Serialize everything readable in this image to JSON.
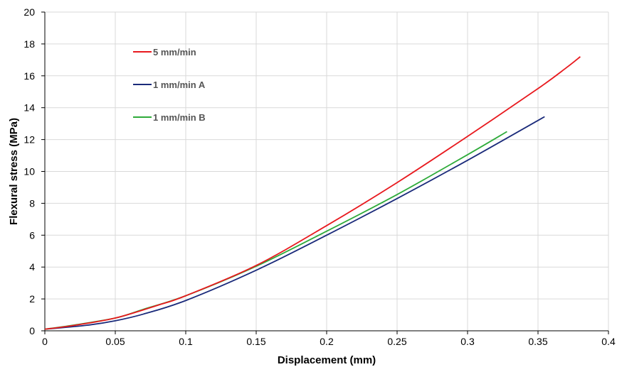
{
  "chart_data": {
    "type": "line",
    "title": "",
    "xlabel": "Displacement (mm)",
    "ylabel": "Flexural stress (MPa)",
    "xlim": [
      0,
      0.4
    ],
    "ylim": [
      0,
      20
    ],
    "xticks": [
      "0",
      "0.05",
      "0.1",
      "0.15",
      "0.2",
      "0.25",
      "0.3",
      "0.35",
      "0.4"
    ],
    "yticks": [
      "0",
      "2",
      "4",
      "6",
      "8",
      "10",
      "12",
      "14",
      "16",
      "18",
      "20"
    ],
    "grid": true,
    "legend_position": "top-left",
    "series": [
      {
        "name": "5 mm/min",
        "color": "#e8191e",
        "x": [
          0,
          0.02,
          0.05,
          0.08,
          0.1,
          0.15,
          0.2,
          0.25,
          0.3,
          0.35,
          0.37,
          0.38
        ],
        "y": [
          0.1,
          0.33,
          0.8,
          1.6,
          2.2,
          4.1,
          6.6,
          9.3,
          12.2,
          15.2,
          16.5,
          17.2
        ]
      },
      {
        "name": "1 mm/min A",
        "color": "#1a2a7a",
        "x": [
          0,
          0.03,
          0.05,
          0.07,
          0.1,
          0.15,
          0.2,
          0.25,
          0.3,
          0.35,
          0.352
        ],
        "y": [
          0.1,
          0.35,
          0.63,
          1.05,
          1.9,
          3.8,
          6.0,
          8.3,
          10.7,
          13.2,
          13.3
        ]
      },
      {
        "name": "1 mm/min B",
        "color": "#2eab3a",
        "x": [
          0,
          0.02,
          0.05,
          0.07,
          0.1,
          0.15,
          0.2,
          0.25,
          0.3,
          0.328
        ],
        "y": [
          0.1,
          0.35,
          0.8,
          1.35,
          2.2,
          4.05,
          6.25,
          8.55,
          11.05,
          12.5
        ]
      }
    ]
  }
}
